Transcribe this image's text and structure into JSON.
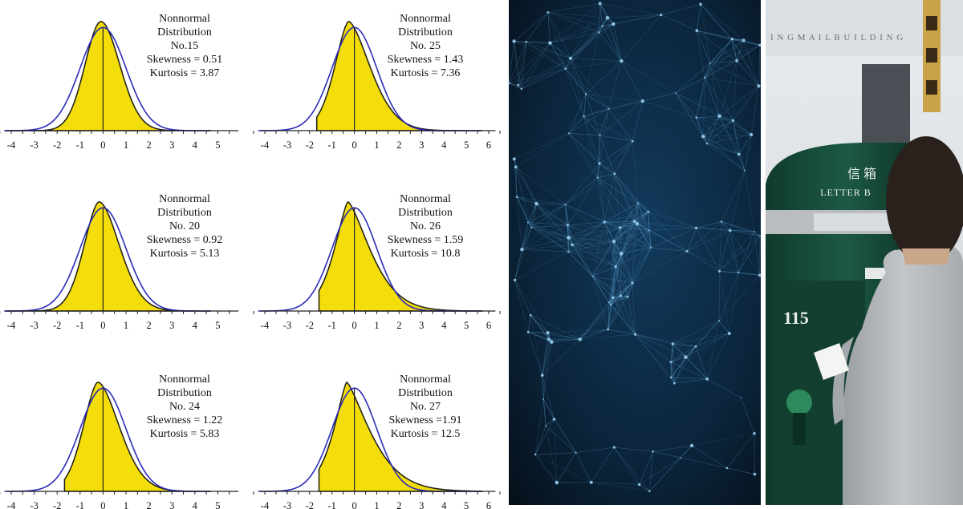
{
  "panels": [
    {
      "title_lines": [
        "Nonnormal",
        "Distribution",
        "No.15"
      ],
      "stats": [
        "Skewness = 0.51",
        "Kurtosis = 3.87"
      ],
      "ticks": [
        "-4",
        "-3",
        "-2",
        "-1",
        "0",
        "1",
        "2",
        "3",
        "4",
        "5"
      ],
      "skewness": 0.51,
      "kurtosis": 3.87
    },
    {
      "title_lines": [
        "Nonnormal",
        "Distribution",
        "No. 25"
      ],
      "stats": [
        "Skewness = 1.43",
        "Kurtosis = 7.36"
      ],
      "ticks": [
        "-4",
        "-3",
        "-2",
        "-1",
        "0",
        "1",
        "2",
        "3",
        "4",
        "5",
        "6"
      ],
      "skewness": 1.43,
      "kurtosis": 7.36
    },
    {
      "title_lines": [
        "Nonnormal",
        "Distribution",
        "No. 20"
      ],
      "stats": [
        "Skewness = 0.92",
        "Kurtosis = 5.13"
      ],
      "ticks": [
        "-4",
        "-3",
        "-2",
        "-1",
        "0",
        "1",
        "2",
        "3",
        "4",
        "5"
      ],
      "skewness": 0.92,
      "kurtosis": 5.13
    },
    {
      "title_lines": [
        "Nonnormal",
        "Distribution",
        "No. 26"
      ],
      "stats": [
        "Skewness = 1.59",
        "Kurtosis = 10.8"
      ],
      "ticks": [
        "-4",
        "-3",
        "-2",
        "-1",
        "0",
        "1",
        "2",
        "3",
        "4",
        "5",
        "6"
      ],
      "skewness": 1.59,
      "kurtosis": 10.8
    },
    {
      "title_lines": [
        "Nonnormal",
        "Distribution",
        "No. 24"
      ],
      "stats": [
        "Skewness = 1.22",
        "Kurtosis = 5.83"
      ],
      "ticks": [
        "-4",
        "-3",
        "-2",
        "-1",
        "0",
        "1",
        "2",
        "3",
        "4",
        "5"
      ],
      "skewness": 1.22,
      "kurtosis": 5.83
    },
    {
      "title_lines": [
        "Nonnormal",
        "Distribution",
        "No. 27"
      ],
      "stats": [
        "Skewness =1.91",
        "Kurtosis = 12.5"
      ],
      "ticks": [
        "-4",
        "-3",
        "-2",
        "-1",
        "0",
        "1",
        "2",
        "3",
        "4",
        "5",
        "6"
      ],
      "skewness": 1.91,
      "kurtosis": 12.5
    }
  ],
  "colors": {
    "fill": "#f3dd0a",
    "outline": "#1a1a1a",
    "normal_curve": "#2b2bb8"
  },
  "mailbox": {
    "sign_chinese": "信 箱",
    "sign_english": "LETTER B",
    "number": "115"
  },
  "building_sign": "I N G  M A I L  B U I L D I N G"
}
